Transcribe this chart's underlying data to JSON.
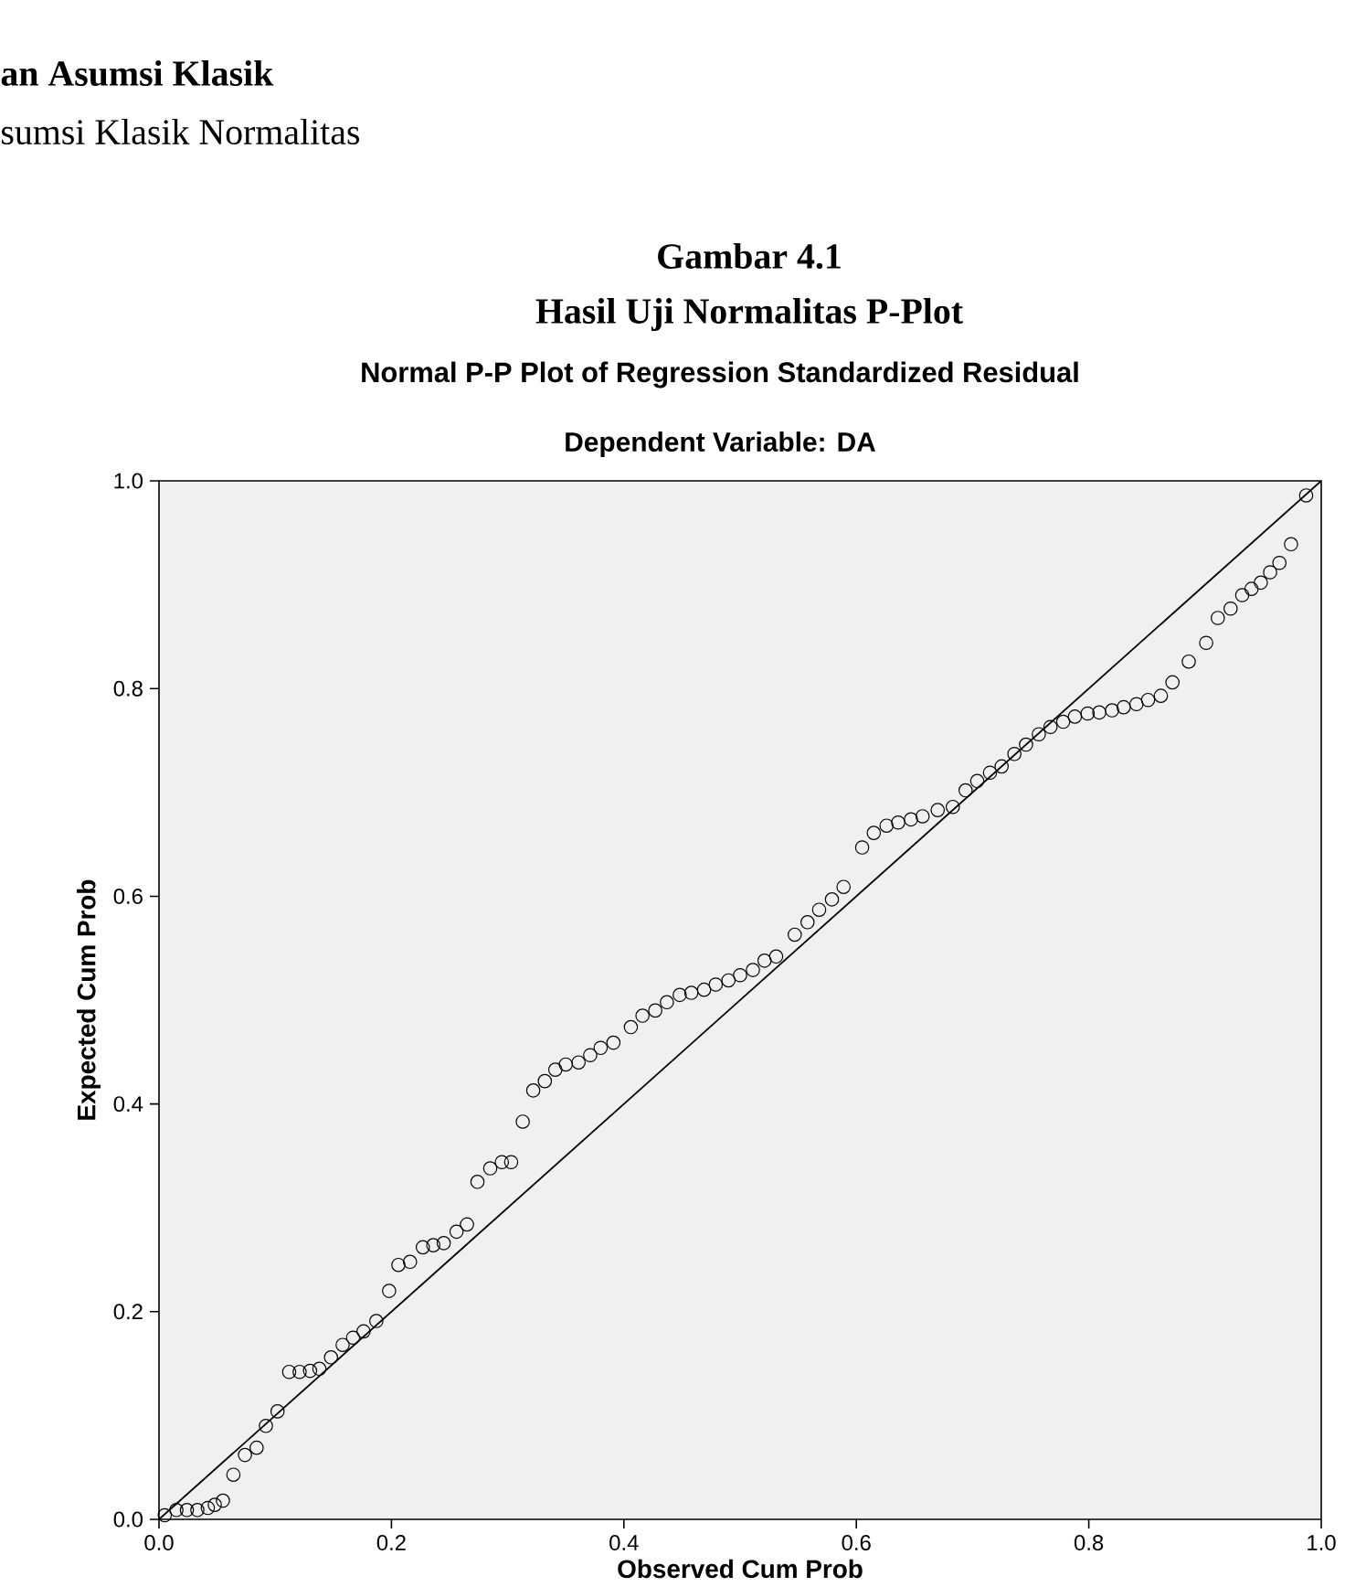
{
  "chart_data": {
    "type": "scatter",
    "title": "Normal P-P Plot of Regression Standardized Residual",
    "subtitle": "Dependent Variable: DA",
    "xlabel": "Observed Cum Prob",
    "ylabel": "Expected Cum Prob",
    "annotations": [
      "an Asumsi Klasik",
      "sumsi Klasik Normalitas",
      "Gambar 4.1",
      "Hasil Uji Normalitas P-Plot"
    ],
    "xlim": [
      0,
      1
    ],
    "ylim": [
      0,
      1
    ],
    "xticks": [
      {
        "value": 0,
        "label": "0.0"
      },
      {
        "value": 0.2,
        "label": "0.2"
      },
      {
        "value": 0.4,
        "label": "0.4"
      },
      {
        "value": 0.6,
        "label": "0.6"
      },
      {
        "value": 0.8,
        "label": "0.8"
      },
      {
        "value": 1,
        "label": "1.0"
      }
    ],
    "yticks": [
      {
        "value": 0,
        "label": "0.0"
      },
      {
        "value": 0.2,
        "label": "0.2"
      },
      {
        "value": 0.4,
        "label": "0.4"
      },
      {
        "value": 0.6,
        "label": "0.6"
      },
      {
        "value": 0.8,
        "label": "0.8"
      },
      {
        "value": 1,
        "label": "1.0"
      }
    ],
    "marker": "none",
    "series": [
      {
        "marker": "circle",
        "color": "#000000",
        "x": [
          0.005,
          0.015,
          0.024,
          0.033,
          0.042,
          0.048,
          0.055,
          0.064,
          0.074,
          0.084,
          0.092,
          0.102,
          0.112,
          0.121,
          0.13,
          0.138,
          0.148,
          0.158,
          0.167,
          0.176,
          0.187,
          0.198,
          0.206,
          0.216,
          0.227,
          0.236,
          0.245,
          0.256,
          0.265,
          0.274,
          0.285,
          0.295,
          0.303,
          0.313,
          0.322,
          0.332,
          0.341,
          0.35,
          0.361,
          0.371,
          0.38,
          0.391,
          0.406,
          0.416,
          0.427,
          0.437,
          0.448,
          0.458,
          0.469,
          0.479,
          0.49,
          0.5,
          0.511,
          0.521,
          0.531,
          0.547,
          0.558,
          0.568,
          0.579,
          0.589,
          0.605,
          0.615,
          0.626,
          0.636,
          0.647,
          0.657,
          0.67,
          0.683,
          0.694,
          0.704,
          0.715,
          0.725,
          0.736,
          0.746,
          0.757,
          0.767,
          0.778,
          0.788,
          0.799,
          0.809,
          0.82,
          0.83,
          0.841,
          0.851,
          0.862,
          0.872,
          0.886,
          0.901,
          0.911,
          0.922,
          0.932,
          0.94,
          0.948,
          0.956,
          0.964,
          0.974,
          0.987
        ],
        "values": [
          0.004,
          0.009,
          0.009,
          0.009,
          0.011,
          0.014,
          0.018,
          0.043,
          0.062,
          0.069,
          0.09,
          0.104,
          0.142,
          0.142,
          0.143,
          0.145,
          0.156,
          0.168,
          0.175,
          0.181,
          0.191,
          0.22,
          0.245,
          0.248,
          0.262,
          0.264,
          0.266,
          0.277,
          0.284,
          0.325,
          0.338,
          0.344,
          0.344,
          0.383,
          0.413,
          0.422,
          0.433,
          0.438,
          0.44,
          0.447,
          0.454,
          0.459,
          0.474,
          0.485,
          0.49,
          0.498,
          0.505,
          0.507,
          0.51,
          0.515,
          0.519,
          0.524,
          0.529,
          0.538,
          0.542,
          0.563,
          0.575,
          0.587,
          0.597,
          0.609,
          0.647,
          0.661,
          0.668,
          0.671,
          0.674,
          0.677,
          0.683,
          0.686,
          0.702,
          0.711,
          0.719,
          0.725,
          0.737,
          0.746,
          0.756,
          0.763,
          0.768,
          0.773,
          0.776,
          0.777,
          0.779,
          0.782,
          0.785,
          0.789,
          0.793,
          0.806,
          0.826,
          0.844,
          0.868,
          0.877,
          0.89,
          0.896,
          0.902,
          0.912,
          0.921,
          0.939,
          0.986
        ]
      },
      {
        "type": "line",
        "color": "#000000",
        "x": [
          0,
          1
        ],
        "values": [
          0,
          1
        ]
      }
    ]
  }
}
